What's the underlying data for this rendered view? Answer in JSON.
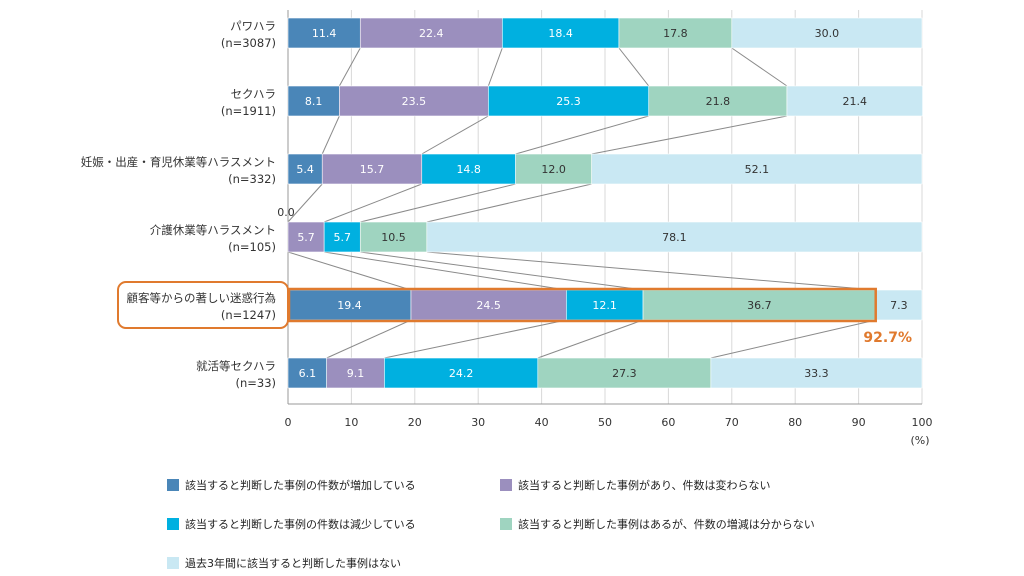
{
  "chart_data": {
    "type": "bar",
    "orientation": "horizontal",
    "stacked": true,
    "categories": [
      [
        "パワハラ",
        "(n=3087)"
      ],
      [
        "セクハラ",
        "(n=1911)"
      ],
      [
        "妊娠・出産・育児休業等ハラスメント",
        "(n=332)"
      ],
      [
        "介護休業等ハラスメント",
        "(n=105)"
      ],
      [
        "顧客等からの著しい迷惑行為",
        "(n=1247)"
      ],
      [
        "就活等セクハラ",
        "(n=33)"
      ]
    ],
    "series": [
      {
        "name": "該当すると判断した事例の件数が増加している",
        "color": "#4a86b8",
        "text_color": "#ffffff",
        "values": [
          11.4,
          8.1,
          5.4,
          0.0,
          19.4,
          6.1
        ]
      },
      {
        "name": "該当すると判断した事例があり、件数は変わらない",
        "color": "#9b8fbe",
        "text_color": "#ffffff",
        "values": [
          22.4,
          23.5,
          15.7,
          5.7,
          24.5,
          9.1
        ]
      },
      {
        "name": "該当すると判断した事例の件数は減少している",
        "color": "#00b0e0",
        "text_color": "#ffffff",
        "values": [
          18.4,
          25.3,
          14.8,
          5.7,
          12.1,
          24.2
        ]
      },
      {
        "name": "該当すると判断した事例はあるが、件数の増減は分からない",
        "color": "#9fd4c0",
        "text_color": "#333333",
        "values": [
          17.8,
          21.8,
          12.0,
          10.5,
          36.7,
          27.3
        ]
      },
      {
        "name": "過去3年間に該当すると判断した事例はない",
        "color": "#c9e8f3",
        "text_color": "#333333",
        "values": [
          30.0,
          21.4,
          52.1,
          78.1,
          7.3,
          33.3
        ]
      }
    ],
    "xlim": [
      0,
      100
    ],
    "x_ticks": [
      0,
      10,
      20,
      30,
      40,
      50,
      60,
      70,
      80,
      90,
      100
    ],
    "x_unit": "(%)",
    "grid": true,
    "legend_position": "bottom",
    "highlight_category_index": 4,
    "annotation": "92.7%",
    "connector_lines": true
  }
}
